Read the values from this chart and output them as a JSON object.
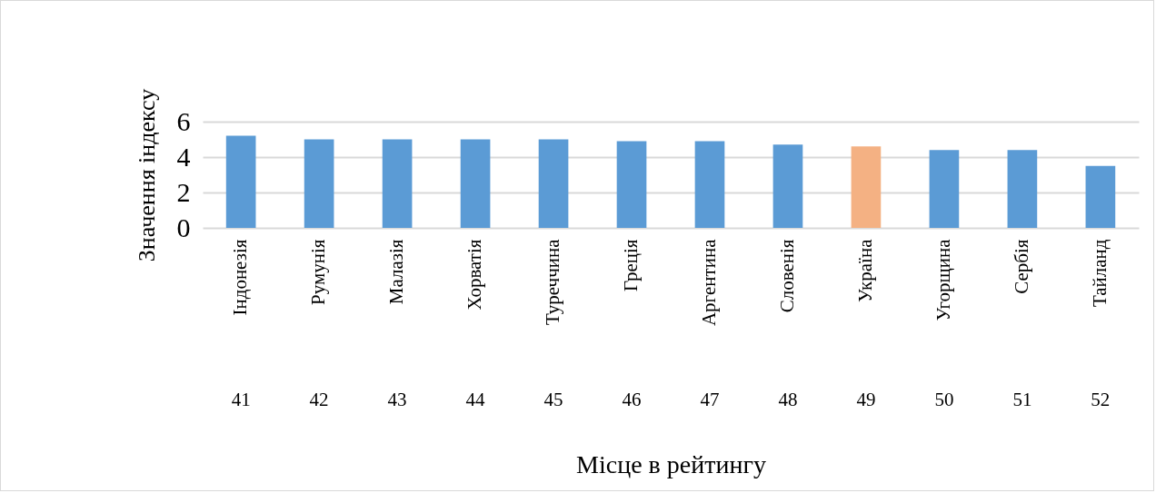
{
  "chart_data": {
    "type": "bar",
    "xlabel": "Місце в рейтингу",
    "ylabel": "Значення індексу",
    "categories": [
      "Індонезія",
      "Румунія",
      "Малазія",
      "Хорватія",
      "Туреччина",
      "Греція",
      "Аргентина",
      "Словенія",
      "Україна",
      "Угорщина",
      "Сербія",
      "Тайланд"
    ],
    "values": [
      5.2,
      5.0,
      5.0,
      5.0,
      5.0,
      4.9,
      4.9,
      4.7,
      4.6,
      4.4,
      4.4,
      3.5
    ],
    "colors": [
      "#5b9bd5",
      "#5b9bd5",
      "#5b9bd5",
      "#5b9bd5",
      "#5b9bd5",
      "#5b9bd5",
      "#5b9bd5",
      "#5b9bd5",
      "#f4b183",
      "#5b9bd5",
      "#5b9bd5",
      "#5b9bd5"
    ],
    "ylim": [
      0,
      6
    ],
    "yticks": [
      0,
      2,
      4,
      6
    ],
    "grid": "y",
    "annotations": [
      "41",
      "42",
      "43",
      "44",
      "45",
      "46",
      "47",
      "48",
      "49",
      "50",
      "51",
      "52"
    ]
  }
}
